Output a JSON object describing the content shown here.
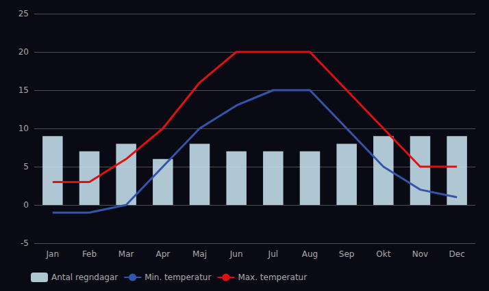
{
  "chart_data": {
    "type": "bar",
    "categories": [
      "Jan",
      "Feb",
      "Mar",
      "Apr",
      "Maj",
      "Jun",
      "Jul",
      "Aug",
      "Sep",
      "Okt",
      "Nov",
      "Dec"
    ],
    "series": [
      {
        "name": "Antal regndagar",
        "type": "bar",
        "color": "#cce8f4",
        "values": [
          9,
          7,
          8,
          6,
          8,
          7,
          7,
          7,
          8,
          9,
          9,
          9
        ]
      },
      {
        "name": "Min. temperatur",
        "type": "line",
        "color": "#3355aa",
        "values": [
          -1,
          -1,
          0,
          5,
          10,
          13,
          15,
          15,
          10,
          5,
          2,
          1
        ]
      },
      {
        "name": "Max. temperatur",
        "type": "line",
        "color": "#dd1111",
        "values": [
          3,
          3,
          6,
          10,
          16,
          20,
          20,
          20,
          15,
          10,
          5,
          5
        ]
      }
    ],
    "ylim": [
      -5,
      25
    ],
    "yticks": [
      -5,
      0,
      5,
      10,
      15,
      20,
      25
    ],
    "grid": true,
    "legend": "lower left"
  }
}
